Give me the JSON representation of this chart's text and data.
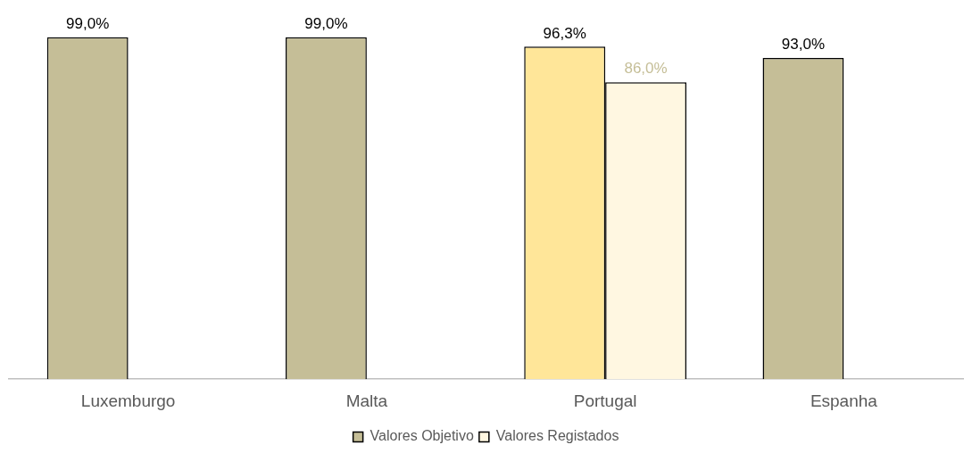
{
  "chart_data": {
    "type": "bar",
    "categories": [
      "Luxemburgo",
      "Malta",
      "Portugal",
      "Espanha"
    ],
    "series": [
      {
        "name": "Valores Objetivo",
        "color": "#c5be97",
        "colors": [
          "#c5be97",
          "#c5be97",
          "#ffe699",
          "#c5be97"
        ],
        "values": [
          99.0,
          99.0,
          96.3,
          93.0
        ],
        "value_labels": [
          "99,0%",
          "99,0%",
          "96,3%",
          "93,0%"
        ]
      },
      {
        "name": "Valores Registados",
        "color": "#fff7e1",
        "values": [
          null,
          null,
          86.0,
          null
        ],
        "value_labels": [
          null,
          null,
          "86,0%",
          null
        ]
      }
    ],
    "legend": "bottom"
  }
}
